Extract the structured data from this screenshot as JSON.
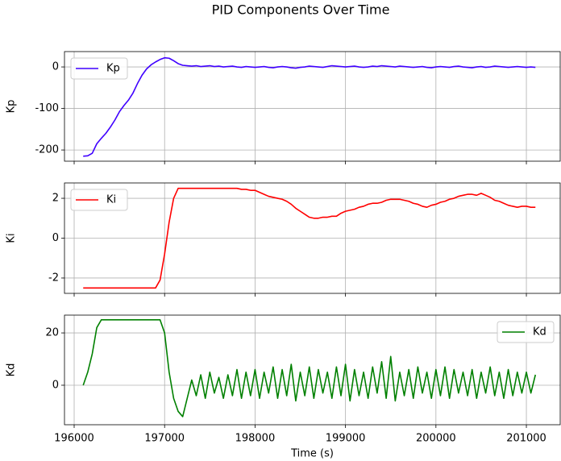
{
  "title": "PID Components Over Time",
  "chart_data": [
    {
      "type": "line",
      "ylabel": "Kp",
      "legend": "upper left",
      "grid": true,
      "xlim": [
        195893,
        201374
      ],
      "ylim": [
        -227,
        37
      ],
      "yticks": [
        -200,
        -100,
        0
      ],
      "x": [
        196100,
        196150,
        196200,
        196250,
        196300,
        196350,
        196400,
        196450,
        196500,
        196550,
        196600,
        196650,
        196700,
        196750,
        196800,
        196850,
        196900,
        196950,
        197000,
        197050,
        197100,
        197150,
        197200,
        197250,
        197300,
        197350,
        197400,
        197450,
        197500,
        197550,
        197600,
        197650,
        197700,
        197750,
        197800,
        197850,
        197900,
        197950,
        198000,
        198050,
        198100,
        198150,
        198200,
        198250,
        198300,
        198350,
        198400,
        198450,
        198500,
        198550,
        198600,
        198650,
        198700,
        198750,
        198800,
        198850,
        198900,
        198950,
        199000,
        199050,
        199100,
        199150,
        199200,
        199250,
        199300,
        199350,
        199400,
        199450,
        199500,
        199550,
        199600,
        199650,
        199700,
        199750,
        199800,
        199850,
        199900,
        199950,
        200000,
        200050,
        200100,
        200150,
        200200,
        200250,
        200300,
        200350,
        200400,
        200450,
        200500,
        200550,
        200600,
        200650,
        200700,
        200750,
        200800,
        200850,
        200900,
        200950,
        201000,
        201050,
        201100
      ],
      "series": [
        {
          "name": "Kp",
          "color": "#3f00ff",
          "values": [
            -215,
            -214,
            -208,
            -185,
            -172,
            -160,
            -145,
            -128,
            -108,
            -93,
            -80,
            -63,
            -40,
            -20,
            -5,
            5,
            12,
            18,
            22,
            21,
            15,
            8,
            4,
            3,
            2,
            3,
            1,
            2,
            3,
            1,
            2,
            0,
            1,
            2,
            0,
            -1,
            1,
            0,
            -1,
            0,
            1,
            -1,
            -2,
            0,
            1,
            0,
            -2,
            -3,
            -1,
            0,
            2,
            1,
            0,
            -1,
            1,
            3,
            2,
            1,
            0,
            1,
            2,
            0,
            -1,
            0,
            2,
            1,
            3,
            2,
            1,
            0,
            2,
            1,
            0,
            -1,
            0,
            1,
            -1,
            -2,
            0,
            1,
            0,
            -1,
            1,
            2,
            0,
            -1,
            -2,
            0,
            1,
            -1,
            0,
            2,
            1,
            0,
            -1,
            0,
            1,
            0,
            -1,
            0,
            -1
          ]
        }
      ]
    },
    {
      "type": "line",
      "ylabel": "Ki",
      "legend": "upper left",
      "grid": true,
      "xlim": [
        195893,
        201374
      ],
      "ylim": [
        -2.77,
        2.77
      ],
      "yticks": [
        -2,
        0,
        2
      ],
      "x": [
        196100,
        196150,
        196200,
        196250,
        196300,
        196350,
        196400,
        196450,
        196500,
        196550,
        196600,
        196650,
        196700,
        196750,
        196800,
        196850,
        196900,
        196950,
        197000,
        197050,
        197100,
        197150,
        197200,
        197250,
        197300,
        197350,
        197400,
        197450,
        197500,
        197550,
        197600,
        197650,
        197700,
        197750,
        197800,
        197850,
        197900,
        197950,
        198000,
        198050,
        198100,
        198150,
        198200,
        198250,
        198300,
        198350,
        198400,
        198450,
        198500,
        198550,
        198600,
        198650,
        198700,
        198750,
        198800,
        198850,
        198900,
        198950,
        199000,
        199050,
        199100,
        199150,
        199200,
        199250,
        199300,
        199350,
        199400,
        199450,
        199500,
        199550,
        199600,
        199650,
        199700,
        199750,
        199800,
        199850,
        199900,
        199950,
        200000,
        200050,
        200100,
        200150,
        200200,
        200250,
        200300,
        200350,
        200400,
        200450,
        200500,
        200550,
        200600,
        200650,
        200700,
        200750,
        200800,
        200850,
        200900,
        200950,
        201000,
        201050,
        201100
      ],
      "series": [
        {
          "name": "Ki",
          "color": "#ff0000",
          "values": [
            -2.5,
            -2.5,
            -2.5,
            -2.5,
            -2.5,
            -2.5,
            -2.5,
            -2.5,
            -2.5,
            -2.5,
            -2.5,
            -2.5,
            -2.5,
            -2.5,
            -2.5,
            -2.5,
            -2.5,
            -2.1,
            -0.8,
            0.8,
            2.0,
            2.5,
            2.5,
            2.5,
            2.5,
            2.5,
            2.5,
            2.5,
            2.5,
            2.5,
            2.5,
            2.5,
            2.5,
            2.5,
            2.5,
            2.45,
            2.45,
            2.4,
            2.4,
            2.3,
            2.2,
            2.1,
            2.05,
            2.0,
            1.95,
            1.85,
            1.7,
            1.5,
            1.35,
            1.2,
            1.05,
            1.0,
            1.0,
            1.05,
            1.05,
            1.1,
            1.1,
            1.25,
            1.35,
            1.4,
            1.45,
            1.55,
            1.6,
            1.7,
            1.75,
            1.75,
            1.8,
            1.9,
            1.95,
            1.95,
            1.95,
            1.9,
            1.85,
            1.75,
            1.7,
            1.6,
            1.55,
            1.65,
            1.7,
            1.8,
            1.85,
            1.95,
            2.0,
            2.1,
            2.15,
            2.2,
            2.2,
            2.15,
            2.25,
            2.15,
            2.05,
            1.9,
            1.85,
            1.75,
            1.65,
            1.6,
            1.55,
            1.6,
            1.6,
            1.55,
            1.55
          ]
        }
      ]
    },
    {
      "type": "line",
      "ylabel": "Kd",
      "xlabel": "Time (s)",
      "legend": "upper right",
      "grid": true,
      "xlim": [
        195893,
        201374
      ],
      "ylim": [
        -15.1,
        26.8
      ],
      "yticks": [
        0,
        20
      ],
      "xticks": [
        196000,
        197000,
        198000,
        199000,
        200000,
        201000
      ],
      "x": [
        196100,
        196150,
        196200,
        196250,
        196300,
        196350,
        196400,
        196450,
        196500,
        196550,
        196600,
        196650,
        196700,
        196750,
        196800,
        196850,
        196900,
        196950,
        197000,
        197050,
        197100,
        197150,
        197200,
        197250,
        197300,
        197350,
        197400,
        197450,
        197500,
        197550,
        197600,
        197650,
        197700,
        197750,
        197800,
        197850,
        197900,
        197950,
        198000,
        198050,
        198100,
        198150,
        198200,
        198250,
        198300,
        198350,
        198400,
        198450,
        198500,
        198550,
        198600,
        198650,
        198700,
        198750,
        198800,
        198850,
        198900,
        198950,
        199000,
        199050,
        199100,
        199150,
        199200,
        199250,
        199300,
        199350,
        199400,
        199450,
        199500,
        199550,
        199600,
        199650,
        199700,
        199750,
        199800,
        199850,
        199900,
        199950,
        200000,
        200050,
        200100,
        200150,
        200200,
        200250,
        200300,
        200350,
        200400,
        200450,
        200500,
        200550,
        200600,
        200650,
        200700,
        200750,
        200800,
        200850,
        200900,
        200950,
        201000,
        201050,
        201100
      ],
      "series": [
        {
          "name": "Kd",
          "color": "#008000",
          "values": [
            0,
            5,
            12,
            22,
            25,
            25,
            25,
            25,
            25,
            25,
            25,
            25,
            25,
            25,
            25,
            25,
            25,
            25,
            20,
            5,
            -5,
            -10,
            -12,
            -5,
            2,
            -4,
            4,
            -5,
            5,
            -3,
            3,
            -5,
            4,
            -4,
            6,
            -5,
            5,
            -4,
            6,
            -5,
            5,
            -3,
            7,
            -5,
            6,
            -4,
            8,
            -6,
            5,
            -4,
            7,
            -5,
            6,
            -3,
            5,
            -5,
            7,
            -4,
            8,
            -6,
            6,
            -4,
            5,
            -5,
            7,
            -3,
            9,
            -5,
            11,
            -6,
            5,
            -4,
            6,
            -5,
            7,
            -3,
            5,
            -5,
            6,
            -4,
            7,
            -5,
            6,
            -3,
            5,
            -4,
            6,
            -5,
            5,
            -3,
            7,
            -4,
            5,
            -5,
            6,
            -4,
            5,
            -3,
            5,
            -3,
            4
          ]
        }
      ]
    }
  ]
}
